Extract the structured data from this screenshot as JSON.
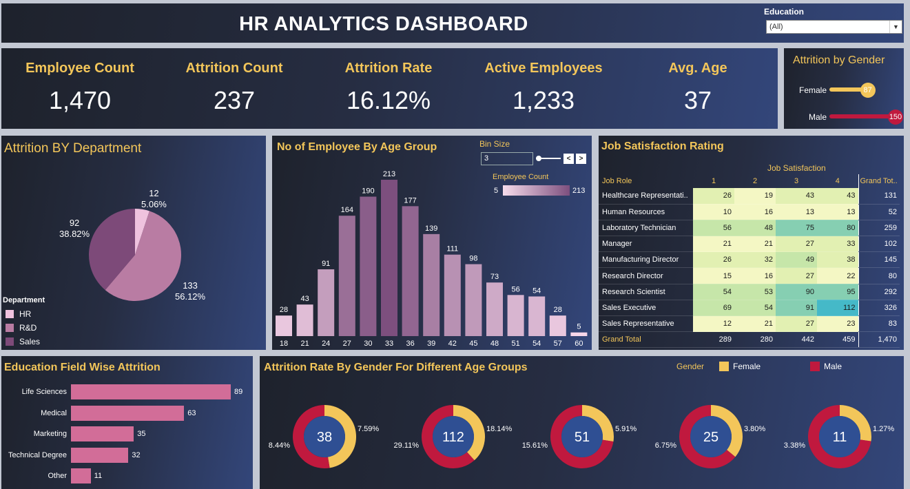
{
  "header": {
    "title": "HR ANALYTICS DASHBOARD",
    "filter_label": "Education",
    "filter_value": "(All)"
  },
  "kpis": [
    {
      "label": "Employee Count",
      "value": "1,470"
    },
    {
      "label": "Attrition Count",
      "value": "237"
    },
    {
      "label": "Attrition Rate",
      "value": "16.12%"
    },
    {
      "label": "Active Employees",
      "value": "1,233"
    },
    {
      "label": "Avg. Age",
      "value": "37"
    }
  ],
  "gender_attrition": {
    "title": "Attrition by Gender",
    "items": [
      {
        "label": "Female",
        "value": "87",
        "color": "#f3c65a"
      },
      {
        "label": "Male",
        "value": "150",
        "color": "#c0193e"
      }
    ]
  },
  "department": {
    "title": "Attrition BY Department",
    "legend_title": "Department",
    "legend": [
      {
        "label": "HR",
        "color": "#efc2de"
      },
      {
        "label": "R&D",
        "color": "#b97ca3"
      },
      {
        "label": "Sales",
        "color": "#7d4a79"
      }
    ],
    "labels": [
      {
        "count": "12",
        "pct": "5.06%"
      },
      {
        "count": "133",
        "pct": "56.12%"
      },
      {
        "count": "92",
        "pct": "38.82%"
      }
    ]
  },
  "age_group": {
    "title": "No of Employee By Age Group",
    "bin_label": "Bin Size",
    "bin_value": "3",
    "legend_label": "Employee Count",
    "legend_min": "5",
    "legend_max": "213",
    "prev_label": "<",
    "next_label": ">"
  },
  "job_satisfaction": {
    "title": "Job Satisfaction Rating",
    "header": "Job Satisfaction",
    "columns": [
      "Job Role",
      "1",
      "2",
      "3",
      "4",
      "Grand Tot.."
    ],
    "rows": [
      {
        "role": "Healthcare Representati..",
        "v": [
          26,
          19,
          43,
          43
        ],
        "total": "131"
      },
      {
        "role": "Human Resources",
        "v": [
          10,
          16,
          13,
          13
        ],
        "total": "52"
      },
      {
        "role": "Laboratory Technician",
        "v": [
          56,
          48,
          75,
          80
        ],
        "total": "259"
      },
      {
        "role": "Manager",
        "v": [
          21,
          21,
          27,
          33
        ],
        "total": "102"
      },
      {
        "role": "Manufacturing Director",
        "v": [
          26,
          32,
          49,
          38
        ],
        "total": "145"
      },
      {
        "role": "Research Director",
        "v": [
          15,
          16,
          27,
          22
        ],
        "total": "80"
      },
      {
        "role": "Research Scientist",
        "v": [
          54,
          53,
          90,
          95
        ],
        "total": "292"
      },
      {
        "role": "Sales Executive",
        "v": [
          69,
          54,
          91,
          112
        ],
        "total": "326"
      },
      {
        "role": "Sales Representative",
        "v": [
          12,
          21,
          27,
          23
        ],
        "total": "83"
      }
    ],
    "grand_total": {
      "label": "Grand Total",
      "v": [
        "289",
        "280",
        "442",
        "459"
      ],
      "total": "1,470"
    }
  },
  "education_field": {
    "title": "Education Field Wise Attrition",
    "items": [
      {
        "label": "Life Sciences",
        "value": 89
      },
      {
        "label": "Medical",
        "value": 63
      },
      {
        "label": "Marketing",
        "value": 35
      },
      {
        "label": "Technical Degree",
        "value": 32
      },
      {
        "label": "Other",
        "value": 11
      }
    ]
  },
  "gender_age": {
    "title": "Attrition Rate By Gender For Different Age Groups",
    "legend_title": "Gender",
    "legend": [
      {
        "label": "Female",
        "color": "#f3c65a"
      },
      {
        "label": "Male",
        "color": "#c0193e"
      }
    ],
    "donuts": [
      {
        "center": "38",
        "female_pct": "7.59%",
        "male_pct": "8.44%",
        "female": 7.59,
        "male": 8.44
      },
      {
        "center": "112",
        "female_pct": "18.14%",
        "male_pct": "29.11%",
        "female": 18.14,
        "male": 29.11
      },
      {
        "center": "51",
        "female_pct": "5.91%",
        "male_pct": "15.61%",
        "female": 5.91,
        "male": 15.61
      },
      {
        "center": "25",
        "female_pct": "3.80%",
        "male_pct": "6.75%",
        "female": 3.8,
        "male": 6.75
      },
      {
        "center": "11",
        "female_pct": "1.27%",
        "male_pct": "3.38%",
        "female": 1.27,
        "male": 3.38
      }
    ]
  },
  "chart_data": [
    {
      "type": "pie",
      "title": "Attrition BY Department",
      "categories": [
        "HR",
        "R&D",
        "Sales"
      ],
      "values": [
        12,
        133,
        92
      ],
      "percent": [
        5.06,
        56.12,
        38.82
      ]
    },
    {
      "type": "bar",
      "title": "No of Employee By Age Group",
      "categories": [
        "18",
        "21",
        "24",
        "27",
        "30",
        "33",
        "36",
        "39",
        "42",
        "45",
        "48",
        "51",
        "54",
        "57",
        "60"
      ],
      "values": [
        28,
        43,
        91,
        164,
        190,
        213,
        177,
        139,
        111,
        98,
        73,
        56,
        54,
        28,
        5
      ],
      "ylim": [
        0,
        213
      ]
    },
    {
      "type": "bar",
      "title": "Education Field Wise Attrition",
      "categories": [
        "Life Sciences",
        "Medical",
        "Marketing",
        "Technical Degree",
        "Other"
      ],
      "values": [
        89,
        63,
        35,
        32,
        11
      ],
      "xlim": [
        0,
        89
      ]
    }
  ]
}
